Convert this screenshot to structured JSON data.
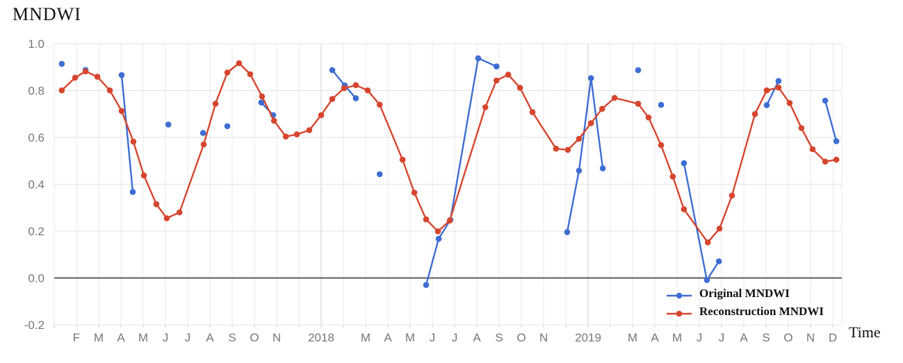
{
  "page": {
    "title": "MNDWI",
    "x_axis_title": "Time"
  },
  "chart_data": {
    "type": "line",
    "title": "MNDWI",
    "xlabel": "Time",
    "ylabel": "MNDWI",
    "x_unit": "t = months since Jan 2017 tick (Jan2017=0, Jan2018=12, Jan2019=24, Dec2019=35)",
    "ylim": [
      -0.2,
      1.0
    ],
    "xlim_t": [
      0,
      35.4
    ],
    "grid": {
      "h_line_color": "#e3e3e3",
      "v_line_color": "#e9e9e9",
      "year_line_color": "#cccccc",
      "zero_line_color": "#595959",
      "tick_color": "#c9c9c9",
      "label_color": "#767676",
      "year_ticks_t": [
        12,
        24
      ]
    },
    "y_ticks": [
      {
        "v": 1.0,
        "label": "1.0"
      },
      {
        "v": 0.8,
        "label": "0.8"
      },
      {
        "v": 0.6,
        "label": "0.6"
      },
      {
        "v": 0.4,
        "label": "0.4"
      },
      {
        "v": 0.2,
        "label": "0.2"
      },
      {
        "v": 0.0,
        "label": "0.0"
      },
      {
        "v": -0.2,
        "label": "-0.2"
      }
    ],
    "x_ticks": [
      {
        "t": 1,
        "label": "F"
      },
      {
        "t": 2,
        "label": "M"
      },
      {
        "t": 3,
        "label": "A"
      },
      {
        "t": 4,
        "label": "M"
      },
      {
        "t": 5,
        "label": "J"
      },
      {
        "t": 6,
        "label": "J"
      },
      {
        "t": 7,
        "label": "A"
      },
      {
        "t": 8,
        "label": "S"
      },
      {
        "t": 9,
        "label": "O"
      },
      {
        "t": 10,
        "label": "N"
      },
      {
        "t": 12,
        "label": "2018"
      },
      {
        "t": 14,
        "label": "M"
      },
      {
        "t": 15,
        "label": "A"
      },
      {
        "t": 16,
        "label": "M"
      },
      {
        "t": 17,
        "label": "J"
      },
      {
        "t": 18,
        "label": "J"
      },
      {
        "t": 19,
        "label": "A"
      },
      {
        "t": 20,
        "label": "S"
      },
      {
        "t": 21,
        "label": "O"
      },
      {
        "t": 22,
        "label": "N"
      },
      {
        "t": 24,
        "label": "2019"
      },
      {
        "t": 26,
        "label": "M"
      },
      {
        "t": 27,
        "label": "A"
      },
      {
        "t": 28,
        "label": "M"
      },
      {
        "t": 29,
        "label": "J"
      },
      {
        "t": 30,
        "label": "J"
      },
      {
        "t": 31,
        "label": "A"
      },
      {
        "t": 32,
        "label": "S"
      },
      {
        "t": 33,
        "label": "O"
      },
      {
        "t": 34,
        "label": "N"
      },
      {
        "t": 35,
        "label": "D"
      }
    ],
    "legend": {
      "position": "inside-bottom-right",
      "items": [
        "Original MNDWI",
        "Reconstruction MNDWI"
      ]
    },
    "series": [
      {
        "name": "Original MNDWI",
        "color": "#3d6dd2",
        "marker": "circle",
        "segments": [
          [
            [
              0.34,
              0.914
            ]
          ],
          [
            [
              1.41,
              0.888
            ]
          ],
          [
            [
              3.03,
              0.866
            ],
            [
              3.53,
              0.367
            ]
          ],
          [
            [
              5.13,
              0.655
            ]
          ],
          [
            [
              6.69,
              0.619
            ]
          ],
          [
            [
              7.78,
              0.648
            ]
          ],
          [
            [
              9.31,
              0.749
            ],
            [
              9.84,
              0.695
            ]
          ],
          [
            [
              12.5,
              0.887
            ],
            [
              13.06,
              0.822
            ],
            [
              13.56,
              0.767
            ]
          ],
          [
            [
              14.63,
              0.443
            ]
          ],
          [
            [
              16.72,
              -0.03
            ],
            [
              17.28,
              0.167
            ],
            [
              17.81,
              0.248
            ],
            [
              19.06,
              0.938
            ],
            [
              19.88,
              0.903
            ]
          ],
          [
            [
              23.06,
              0.196
            ],
            [
              23.59,
              0.458
            ],
            [
              24.13,
              0.853
            ],
            [
              24.66,
              0.468
            ]
          ],
          [
            [
              26.25,
              0.887
            ]
          ],
          [
            [
              27.28,
              0.739
            ]
          ],
          [
            [
              28.31,
              0.49
            ],
            [
              29.34,
              -0.009
            ],
            [
              29.88,
              0.071
            ]
          ],
          [
            [
              32.03,
              0.738
            ],
            [
              32.56,
              0.841
            ]
          ],
          [
            [
              34.66,
              0.757
            ],
            [
              35.16,
              0.584
            ]
          ]
        ]
      },
      {
        "name": "Reconstruction MNDWI",
        "color": "#d6452d",
        "marker": "circle",
        "segments": [
          [
            [
              0.34,
              0.801
            ],
            [
              0.94,
              0.855
            ],
            [
              1.41,
              0.882
            ],
            [
              1.94,
              0.859
            ],
            [
              2.5,
              0.801
            ],
            [
              3.03,
              0.713
            ],
            [
              3.56,
              0.582
            ],
            [
              4.03,
              0.438
            ],
            [
              4.59,
              0.315
            ],
            [
              5.06,
              0.255
            ],
            [
              5.63,
              0.28
            ],
            [
              6.72,
              0.57
            ],
            [
              7.25,
              0.744
            ],
            [
              7.78,
              0.877
            ],
            [
              8.31,
              0.917
            ],
            [
              8.81,
              0.87
            ],
            [
              9.34,
              0.775
            ],
            [
              9.88,
              0.671
            ],
            [
              10.41,
              0.604
            ],
            [
              10.91,
              0.613
            ],
            [
              11.47,
              0.631
            ],
            [
              12.0,
              0.695
            ],
            [
              12.5,
              0.764
            ],
            [
              13.03,
              0.81
            ],
            [
              13.56,
              0.823
            ],
            [
              14.09,
              0.801
            ],
            [
              14.63,
              0.74
            ],
            [
              15.66,
              0.505
            ],
            [
              16.19,
              0.364
            ],
            [
              16.72,
              0.25
            ],
            [
              17.25,
              0.199
            ],
            [
              17.78,
              0.245
            ],
            [
              19.38,
              0.729
            ],
            [
              19.88,
              0.843
            ],
            [
              20.41,
              0.868
            ],
            [
              20.94,
              0.812
            ],
            [
              21.5,
              0.708
            ],
            [
              22.56,
              0.552
            ],
            [
              23.09,
              0.547
            ],
            [
              23.59,
              0.594
            ],
            [
              24.13,
              0.661
            ],
            [
              24.63,
              0.722
            ],
            [
              25.19,
              0.769
            ],
            [
              26.25,
              0.744
            ],
            [
              26.72,
              0.685
            ],
            [
              27.28,
              0.567
            ],
            [
              27.81,
              0.433
            ],
            [
              28.31,
              0.293
            ],
            [
              29.38,
              0.152
            ],
            [
              29.91,
              0.211
            ],
            [
              30.47,
              0.352
            ],
            [
              31.5,
              0.7
            ],
            [
              32.03,
              0.801
            ],
            [
              32.56,
              0.813
            ],
            [
              33.06,
              0.747
            ],
            [
              33.59,
              0.64
            ],
            [
              34.09,
              0.55
            ],
            [
              34.66,
              0.497
            ],
            [
              35.16,
              0.505
            ]
          ]
        ]
      }
    ]
  }
}
